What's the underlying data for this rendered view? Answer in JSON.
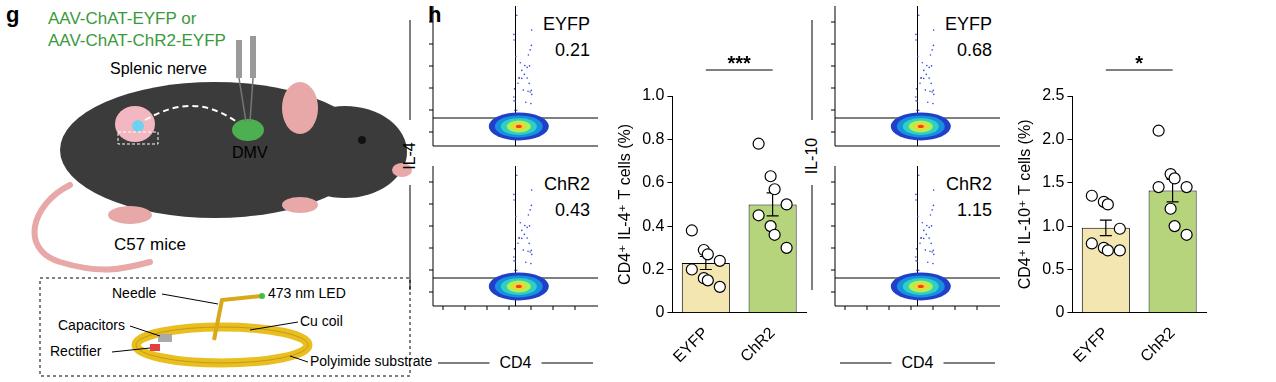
{
  "panel_g": {
    "label": "g",
    "vectors": [
      "AAV-ChAT-EYFP or",
      "AAV-ChAT-ChR2-EYFP"
    ],
    "nerve": "Splenic nerve",
    "nucleus": "DMV",
    "mouse": "C57 mice",
    "device": {
      "needle": "Needle",
      "led": "473 nm LED",
      "capacitors": "Capacitors",
      "coil": "Cu coil",
      "rectifier": "Rectifier",
      "substrate": "Polyimide substrate"
    }
  },
  "panel_h": {
    "label": "h",
    "flow": [
      {
        "y_label": "IL-4",
        "x_label": "CD4",
        "plots": [
          {
            "group": "EYFP",
            "percent": 0.21
          },
          {
            "group": "ChR2",
            "percent": 0.43
          }
        ]
      },
      {
        "y_label": "IL-10",
        "x_label": "CD4",
        "plots": [
          {
            "group": "EYFP",
            "percent": 0.68
          },
          {
            "group": "ChR2",
            "percent": 1.15
          }
        ]
      }
    ]
  },
  "chart_data": [
    {
      "type": "bar",
      "y_label": "CD4⁺ IL-4⁺ T cells (%)",
      "categories": [
        "EYFP",
        "ChR2"
      ],
      "values": [
        0.23,
        0.5
      ],
      "errors": [
        0.03,
        0.053
      ],
      "points": [
        [
          0.38,
          0.29,
          0.27,
          0.24,
          0.2,
          0.16,
          0.15,
          0.12
        ],
        [
          0.78,
          0.63,
          0.57,
          0.5,
          0.45,
          0.4,
          0.36,
          0.3
        ]
      ],
      "colors": [
        "#f3e6b0",
        "#b5d47c"
      ],
      "significance": "***",
      "ylim": [
        0,
        1
      ],
      "yticks": [
        0,
        0.2,
        0.4,
        0.6,
        0.8,
        {
          "value": 1,
          "label": "1.0"
        }
      ],
      "grid": false
    },
    {
      "type": "bar",
      "y_label": "CD4⁺ IL-10⁺ T cells (%)",
      "categories": [
        "EYFP",
        "ChR2"
      ],
      "values": [
        0.98,
        1.41
      ],
      "errors": [
        0.09,
        0.13
      ],
      "points": [
        [
          1.35,
          1.28,
          1.25,
          0.97,
          0.8,
          0.75,
          0.72,
          0.72
        ],
        [
          2.1,
          1.6,
          1.55,
          1.45,
          1.45,
          1.2,
          1.0,
          0.9
        ]
      ],
      "colors": [
        "#f3e6b0",
        "#b5d47c"
      ],
      "significance": "*",
      "ylim": [
        0,
        2.5
      ],
      "yticks": [
        0,
        0.5,
        {
          "value": 1,
          "label": "1.0"
        },
        1.5,
        {
          "value": 2,
          "label": "2.0"
        },
        2.5
      ],
      "grid": false
    }
  ]
}
